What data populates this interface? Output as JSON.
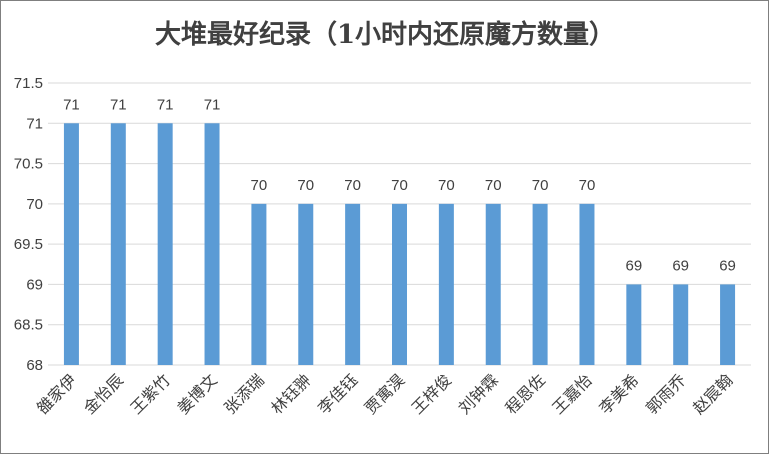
{
  "chart_data": {
    "type": "bar",
    "title": "大堆最好纪录（1小时内还原魔方数量）",
    "xlabel": "",
    "ylabel": "",
    "categories": [
      "雒家伊",
      "金怡辰",
      "王紫竹",
      "姜博文",
      "张添瑞",
      "林钰翀",
      "李佳钰",
      "贾寓淏",
      "王梓俊",
      "刘钟霖",
      "程恩佐",
      "王嘉怡",
      "李美希",
      "郭雨乔",
      "赵宸翰"
    ],
    "series": [
      {
        "values": [
          71,
          71,
          71,
          71,
          70,
          70,
          70,
          70,
          70,
          70,
          70,
          70,
          69,
          69,
          69
        ]
      }
    ],
    "ylim": [
      68,
      71.5
    ],
    "yticks": [
      "68",
      "68.5",
      "69",
      "69.5",
      "70",
      "70.5",
      "71",
      "71.5"
    ],
    "data_labels": true,
    "grid": true,
    "legend": "none",
    "colors": {
      "bar": "#5b9bd5",
      "grid": "#d9d9d9",
      "text": "#404040"
    }
  }
}
